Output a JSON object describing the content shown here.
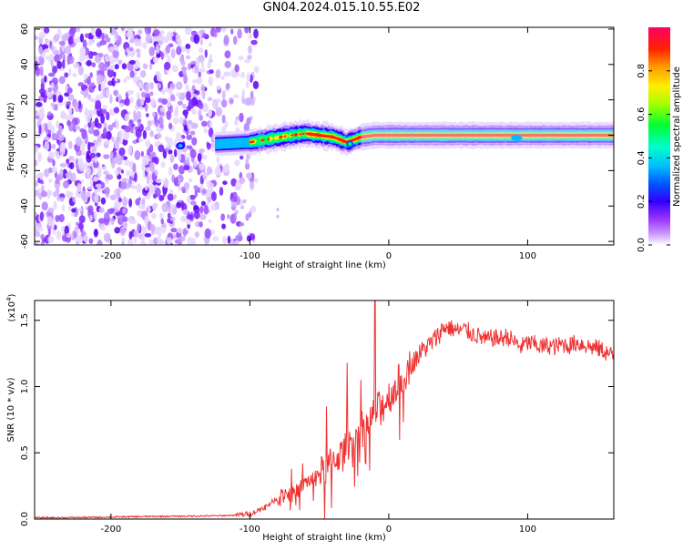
{
  "title": "GN04.2024.015.10.55.E02",
  "colors": {
    "snr_line": "#ee3333",
    "colormap": [
      "#ffffff",
      "#9933ff",
      "#3300ff",
      "#0066ff",
      "#00ccff",
      "#00ff66",
      "#ccff00",
      "#ffcc00",
      "#ff3300",
      "#ff0066"
    ]
  },
  "chart_data": [
    {
      "type": "heatmap",
      "title": "GN04.2024.015.10.55.E02",
      "xlabel": "Height of straight line (km)",
      "ylabel": "Frequency (Hz)",
      "xlim": [
        -255,
        162
      ],
      "ylim": [
        -62,
        61
      ],
      "xticks": [
        "-200",
        "-100",
        "0",
        "100"
      ],
      "xtick_values": [
        -200,
        -100,
        0,
        100
      ],
      "yticks": [
        "-60",
        "-40",
        "-20",
        "0",
        "20",
        "40",
        "60"
      ],
      "ytick_values": [
        -60,
        -40,
        -20,
        0,
        20,
        40,
        60
      ],
      "colorbar": {
        "label": "Normalized spectral amplitude",
        "ticks": [
          "0.0",
          "0.2",
          "0.4",
          "0.6",
          "0.8"
        ],
        "tick_values": [
          0.0,
          0.2,
          0.4,
          0.6,
          0.8
        ],
        "range": [
          0,
          1
        ]
      },
      "features": {
        "noise_region_x": [
          -255,
          -103
        ],
        "signal_band_x": [
          -125,
          162
        ],
        "signal_band_center_hz": [
          [
            -125,
            -5
          ],
          [
            -100,
            -4
          ],
          [
            -85,
            -2
          ],
          [
            -70,
            0
          ],
          [
            -60,
            1
          ],
          [
            -50,
            0
          ],
          [
            -40,
            -1
          ],
          [
            -30,
            -4
          ],
          [
            -20,
            -1
          ],
          [
            -10,
            0
          ],
          [
            0,
            0
          ],
          [
            50,
            0
          ],
          [
            100,
            0
          ],
          [
            162,
            0
          ]
        ]
      }
    },
    {
      "type": "line",
      "xlabel": "Height of straight line (km)",
      "ylabel": "SNR (10 * v/v)",
      "yscale_label": "(x10",
      "yscale_exp": "4",
      "xlim": [
        -255,
        162
      ],
      "ylim": [
        0,
        1.65
      ],
      "xticks": [
        "-200",
        "-100",
        "0",
        "100"
      ],
      "xtick_values": [
        -200,
        -100,
        0,
        100
      ],
      "yticks": [
        "0.0",
        "0.5",
        "1.0",
        "1.5"
      ],
      "ytick_values": [
        0.0,
        0.5,
        1.0,
        1.5
      ],
      "series": [
        {
          "x": [
            -255,
            -240,
            -220,
            -200,
            -180,
            -160,
            -140,
            -120,
            -110,
            -100,
            -95,
            -90,
            -85,
            -80,
            -75,
            -70,
            -65,
            -60,
            -55,
            -50,
            -45,
            -40,
            -35,
            -30,
            -25,
            -20,
            -15,
            -10,
            -5,
            0,
            5,
            10,
            15,
            20,
            25,
            30,
            35,
            40,
            45,
            50,
            55,
            60,
            65,
            70,
            75,
            80,
            85,
            90,
            95,
            100,
            105,
            110,
            115,
            120,
            125,
            130,
            135,
            140,
            145,
            150,
            155,
            162
          ],
          "y": [
            0.01,
            0.01,
            0.012,
            0.015,
            0.018,
            0.02,
            0.022,
            0.025,
            0.03,
            0.04,
            0.06,
            0.09,
            0.12,
            0.16,
            0.2,
            0.18,
            0.22,
            0.28,
            0.3,
            0.35,
            0.38,
            0.45,
            0.48,
            0.55,
            0.62,
            0.68,
            0.7,
            0.8,
            0.85,
            0.92,
            1.0,
            1.08,
            1.15,
            1.22,
            1.28,
            1.32,
            1.38,
            1.45,
            1.44,
            1.42,
            1.43,
            1.4,
            1.38,
            1.35,
            1.37,
            1.36,
            1.38,
            1.34,
            1.3,
            1.33,
            1.32,
            1.3,
            1.31,
            1.3,
            1.32,
            1.31,
            1.33,
            1.32,
            1.3,
            1.29,
            1.27,
            1.22
          ],
          "spikes": [
            [
              -10,
              1.65
            ],
            [
              -20,
              1.05
            ],
            [
              -30,
              1.18
            ],
            [
              -45,
              0.85
            ],
            [
              -70,
              0.38
            ],
            [
              -62,
              0.42
            ]
          ]
        }
      ]
    }
  ]
}
